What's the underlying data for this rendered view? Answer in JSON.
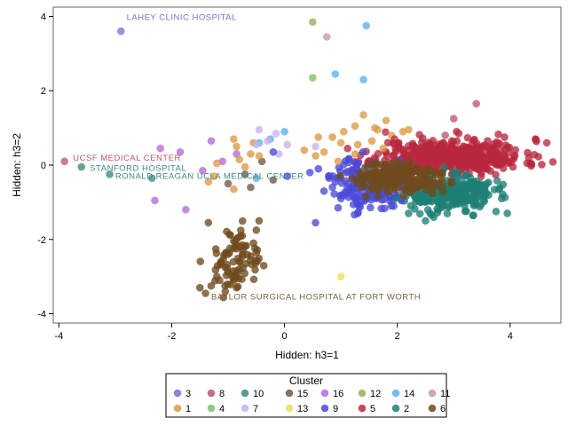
{
  "chart_data": {
    "type": "scatter",
    "xlabel": "Hidden: h3=1",
    "ylabel": "Hidden: h3=2",
    "xlim": [
      -4.1,
      4.9
    ],
    "ylim": [
      -4.25,
      4.25
    ],
    "x_ticks": [
      -4,
      -2,
      0,
      2,
      4
    ],
    "y_ticks": [
      -4,
      -2,
      0,
      2,
      4
    ],
    "grid": false,
    "legend_position": "bottom",
    "legend_title": "Cluster",
    "legend_order": [
      [
        "3",
        "8",
        "10",
        "15",
        "16",
        "12",
        "14",
        "11"
      ],
      [
        "1",
        "4",
        "7",
        "13",
        "9",
        "5",
        "2",
        "6"
      ]
    ],
    "series": [
      {
        "name": "3",
        "color": "#7a6fd6",
        "points": [
          [
            -2.9,
            3.6
          ]
        ]
      },
      {
        "name": "8",
        "color": "#b85a6b",
        "points": [
          [
            -3.9,
            0.1
          ],
          [
            3.4,
            1.65
          ],
          [
            3.0,
            1.25
          ],
          [
            2.85,
            0.8
          ]
        ]
      },
      {
        "name": "10",
        "color": "#3e8a80",
        "points": [
          [
            -3.6,
            -0.05
          ],
          [
            -3.1,
            -0.25
          ],
          [
            -2.35,
            -0.35
          ]
        ]
      },
      {
        "name": "15",
        "color": "#6e5a46",
        "points": [
          [
            -0.7,
            -0.25
          ],
          [
            -0.6,
            -0.6
          ],
          [
            -1.0,
            -0.5
          ],
          [
            -0.4,
            0.1
          ],
          [
            -0.2,
            -0.4
          ]
        ]
      },
      {
        "name": "16",
        "color": "#b46ad8",
        "points": [
          [
            -2.2,
            0.45
          ],
          [
            -2.3,
            -0.95
          ],
          [
            -1.75,
            -1.2
          ],
          [
            -1.85,
            0.35
          ],
          [
            -1.3,
            0.65
          ],
          [
            -1.45,
            -0.15
          ],
          [
            -1.1,
            0.1
          ],
          [
            -0.85,
            0.3
          ]
        ]
      },
      {
        "name": "12",
        "color": "#a7a85a",
        "points": [
          [
            0.5,
            3.85
          ]
        ]
      },
      {
        "name": "14",
        "color": "#5bb1ea",
        "points": [
          [
            1.45,
            3.75
          ],
          [
            1.4,
            2.3
          ],
          [
            0.9,
            2.45
          ],
          [
            -0.45,
            0.6
          ],
          [
            -0.25,
            0.7
          ],
          [
            0.0,
            0.9
          ],
          [
            -0.5,
            -0.35
          ]
        ]
      },
      {
        "name": "11",
        "color": "#c795ab",
        "points": [
          [
            0.75,
            3.45
          ]
        ]
      },
      {
        "name": "1",
        "color": "#dd9a45",
        "points": [
          [
            1.4,
            1.35
          ],
          [
            1.6,
            1.0
          ],
          [
            1.8,
            1.2
          ],
          [
            1.25,
            1.05
          ],
          [
            1.05,
            0.9
          ],
          [
            0.85,
            0.75
          ],
          [
            0.6,
            0.75
          ],
          [
            1.0,
            0.6
          ],
          [
            0.7,
            0.35
          ],
          [
            1.3,
            0.55
          ],
          [
            1.55,
            0.65
          ],
          [
            1.9,
            0.8
          ],
          [
            0.95,
            0.1
          ],
          [
            0.55,
            0.25
          ],
          [
            1.25,
            0.3
          ],
          [
            1.75,
            0.45
          ],
          [
            2.1,
            0.9
          ],
          [
            -0.9,
            0.7
          ],
          [
            -0.85,
            0.5
          ],
          [
            -0.6,
            0.3
          ],
          [
            -0.7,
            -0.05
          ],
          [
            -1.2,
            0.05
          ],
          [
            -1.25,
            -0.3
          ],
          [
            -0.9,
            -0.65
          ],
          [
            -0.45,
            0.25
          ],
          [
            -0.8,
            0.15
          ],
          [
            -1.35,
            -0.45
          ],
          [
            -0.55,
            0.6
          ],
          [
            0.35,
            0.4
          ],
          [
            1.65,
            0.95
          ],
          [
            2.2,
            0.95
          ]
        ]
      },
      {
        "name": "4",
        "color": "#7ac167",
        "points": [
          [
            0.5,
            2.35
          ]
        ]
      },
      {
        "name": "7",
        "color": "#c9b1ee",
        "points": [
          [
            -0.45,
            0.95
          ],
          [
            -0.15,
            0.85
          ],
          [
            -0.5,
            0.55
          ],
          [
            0.05,
            0.55
          ],
          [
            0.55,
            0.5
          ],
          [
            -0.3,
            0.65
          ],
          [
            -0.1,
            0.3
          ]
        ]
      },
      {
        "name": "13",
        "color": "#ece05d",
        "points": [
          [
            1.0,
            -3.0
          ]
        ]
      },
      {
        "name": "9",
        "color": "#4a4ad8",
        "points": [
          [
            -0.2,
            0.35
          ],
          [
            0.05,
            -0.3
          ],
          [
            0.45,
            -0.2
          ],
          [
            0.9,
            -0.45
          ],
          [
            0.7,
            -0.7
          ],
          [
            1.0,
            -0.9
          ],
          [
            1.3,
            -1.05
          ],
          [
            1.1,
            -0.2
          ],
          [
            1.2,
            -0.65
          ],
          [
            0.55,
            -1.55
          ],
          [
            0.95,
            -1.15
          ],
          [
            1.3,
            -1.3
          ],
          [
            0.6,
            -0.1
          ],
          [
            0.8,
            -0.3
          ]
        ]
      },
      {
        "name": "5",
        "color": "#b8283d",
        "points": [
          [
            1.95,
            0.7
          ],
          [
            2.45,
            0.72
          ],
          [
            3.05,
            0.9
          ],
          [
            3.9,
            0.75
          ],
          [
            4.45,
            0.7
          ],
          [
            4.65,
            0.6
          ],
          [
            4.3,
            0.05
          ],
          [
            4.05,
            -0.05
          ],
          [
            3.7,
            0.3
          ],
          [
            3.25,
            0.45
          ]
        ]
      },
      {
        "name": "2",
        "color": "#1e7f74",
        "points": [
          [
            3.55,
            -0.6
          ],
          [
            3.85,
            -0.9
          ],
          [
            3.95,
            -1.3
          ],
          [
            3.35,
            -1.35
          ],
          [
            2.5,
            -1.5
          ],
          [
            2.2,
            -1.3
          ],
          [
            3.75,
            -1.25
          ]
        ]
      },
      {
        "name": "6",
        "color": "#6e4a1e",
        "points": [
          [
            -0.45,
            -1.5
          ],
          [
            -0.5,
            -1.75
          ],
          [
            -0.75,
            -1.9
          ],
          [
            -0.55,
            -2.1
          ],
          [
            -0.85,
            -2.25
          ],
          [
            -1.0,
            -2.4
          ],
          [
            -0.8,
            -2.6
          ],
          [
            -0.6,
            -2.45
          ],
          [
            -1.05,
            -2.75
          ],
          [
            -0.95,
            -2.95
          ],
          [
            -1.15,
            -3.1
          ],
          [
            -0.85,
            -3.3
          ],
          [
            -1.05,
            -3.4
          ],
          [
            -1.3,
            -3.25
          ],
          [
            -1.5,
            -3.3
          ],
          [
            -1.4,
            -3.45
          ],
          [
            -0.75,
            -2.15
          ],
          [
            -1.35,
            -1.55
          ],
          [
            -0.5,
            -2.35
          ],
          [
            -1.2,
            -3.0
          ],
          [
            -0.9,
            -3.1
          ]
        ]
      }
    ],
    "dense_clusters": [
      {
        "series": "5",
        "cx": 2.95,
        "cy": 0.25,
        "sx": 0.65,
        "sy": 0.22,
        "n": 460,
        "seed": 11
      },
      {
        "series": "2",
        "cx": 2.85,
        "cy": -0.75,
        "sx": 0.42,
        "sy": 0.22,
        "n": 300,
        "seed": 23
      },
      {
        "series": "9",
        "cx": 1.45,
        "cy": -0.5,
        "sx": 0.28,
        "sy": 0.35,
        "n": 150,
        "seed": 37
      },
      {
        "series": "6",
        "cx": 2.0,
        "cy": -0.35,
        "sx": 0.4,
        "sy": 0.2,
        "n": 230,
        "seed": 51
      },
      {
        "series": "6",
        "cx": -0.85,
        "cy": -2.65,
        "sx": 0.22,
        "sy": 0.45,
        "n": 70,
        "seed": 67
      }
    ],
    "annotations": [
      {
        "text": "LAHEY CLINIC HOSPITAL",
        "x": -2.8,
        "y": 3.9,
        "color": "#7a6fd6"
      },
      {
        "text": "UCSF MEDICAL CENTER",
        "x": -3.75,
        "y": 0.12,
        "color": "#b85a6b"
      },
      {
        "text": "STANFORD HOSPITAL",
        "x": -3.45,
        "y": -0.15,
        "color": "#3e8a80"
      },
      {
        "text": "RONALD REAGAN UCLA MEDICAL CENTER",
        "x": -3.0,
        "y": -0.37,
        "color": "#3e8a80"
      },
      {
        "text": "BAYLOR SURGICAL HOSPITAL AT FORT WORTH",
        "x": -1.3,
        "y": -3.62,
        "color": "#7a6040"
      }
    ]
  }
}
